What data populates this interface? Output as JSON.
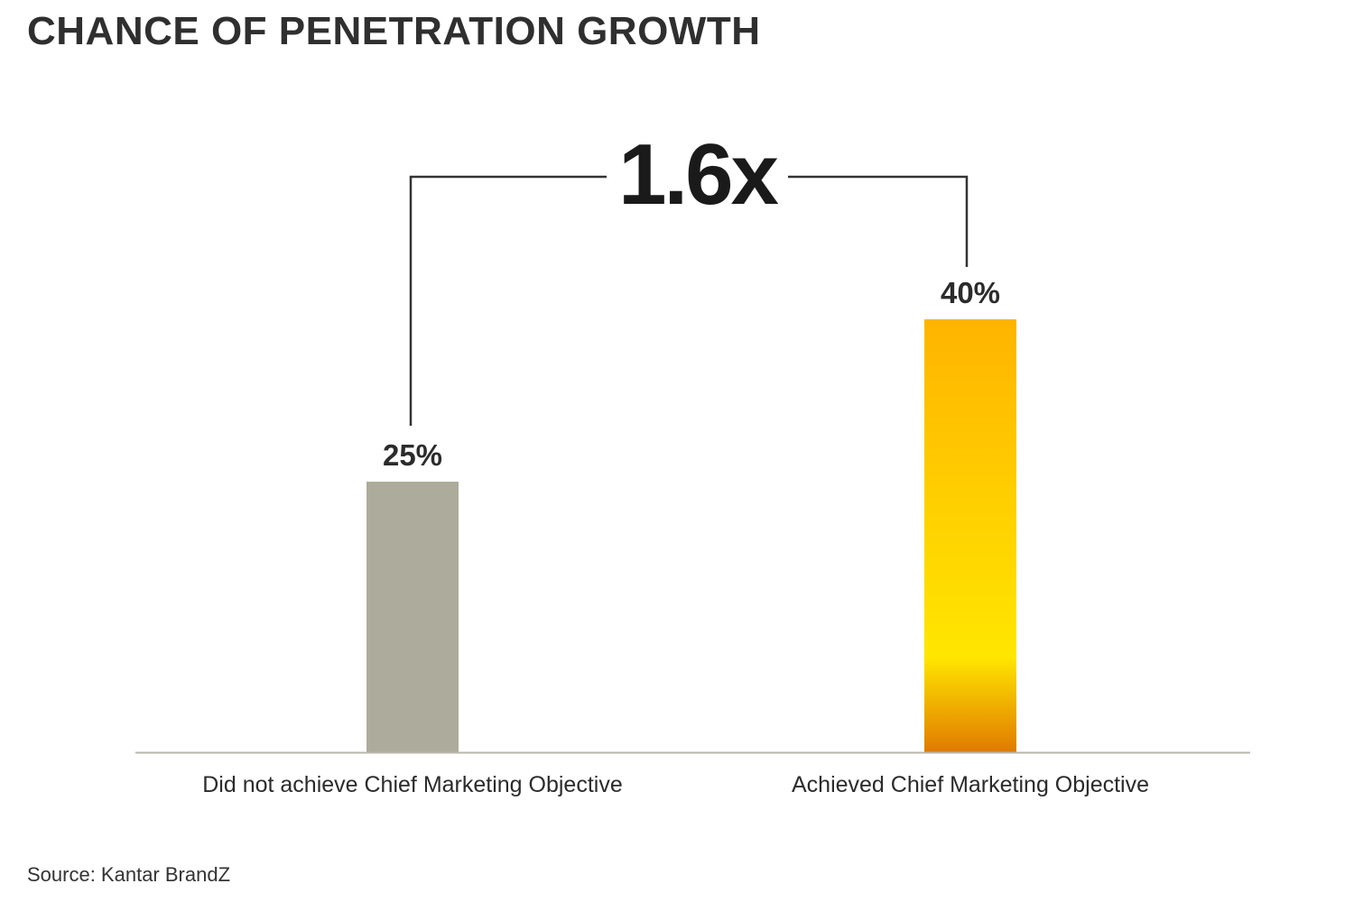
{
  "title": "CHANCE OF PENETRATION GROWTH",
  "source": "Source: Kantar BrandZ",
  "colors": {
    "text": "#2b2b2b",
    "baseline": "#b9b6ac",
    "bracket": "#333333",
    "bar_gray": "#adac9c",
    "bar_gold_top": "#ffb400",
    "bar_gold_mid": "#ffe600",
    "bar_gold_bottom": "#e07a00"
  },
  "chart_data": {
    "type": "bar",
    "categories": [
      "Did not achieve Chief Marketing Objective",
      "Achieved Chief Marketing Objective"
    ],
    "values": [
      25,
      40
    ],
    "value_labels": [
      "25%",
      "40%"
    ],
    "unit": "%",
    "annotation": "1.6x",
    "ylim": [
      0,
      50
    ],
    "grid": false,
    "legend": "none"
  }
}
